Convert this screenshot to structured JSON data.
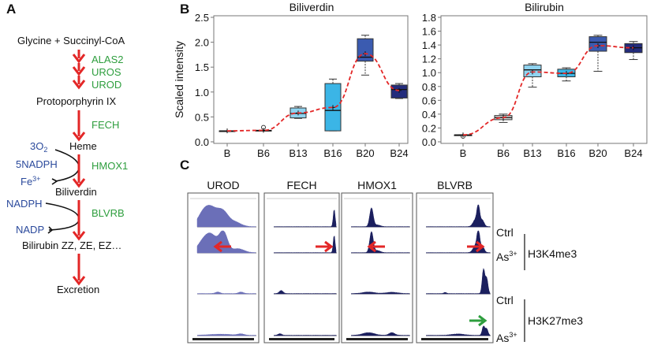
{
  "panels": {
    "a": "A",
    "b": "B",
    "c": "C"
  },
  "pathway": {
    "steps": [
      "Glycine + Succinyl-CoA",
      "Protoporphyrin IX",
      "Heme",
      "Biliverdin",
      "Bilirubin ZZ, ZE, EZ…",
      "Excretion"
    ],
    "enzymes": [
      "ALAS2",
      "UROS",
      "UROD",
      "FECH",
      "HMOX1",
      "BLVRB"
    ],
    "cofactors": {
      "o2": "3O",
      "o2_sub": "2",
      "nadph5": "5NADPH",
      "fe": "Fe",
      "fe_sup": "3+",
      "nadph": "NADPH",
      "nadp": "NADP"
    },
    "colors": {
      "arrow": "#e32727",
      "enzyme": "#2e9e3e",
      "cofactor": "#2b4a9c"
    }
  },
  "chart_data": [
    {
      "type": "box",
      "title": "Biliverdin",
      "ylabel": "Scaled intensity",
      "xlabel": "",
      "categories": [
        "B",
        "B6",
        "B13",
        "B16",
        "B20",
        "B24"
      ],
      "ylim": [
        0,
        2.5
      ],
      "yticks": [
        "0.0",
        "0.5",
        "1.0",
        "1.5",
        "2.0",
        "2.5"
      ],
      "boxes": [
        {
          "min": 0.22,
          "q1": 0.22,
          "median": 0.22,
          "q3": 0.22,
          "max": 0.22,
          "mean": 0.22,
          "outliers": []
        },
        {
          "min": 0.23,
          "q1": 0.23,
          "median": 0.23,
          "q3": 0.23,
          "max": 0.23,
          "mean": 0.23,
          "outliers": [
            0.29
          ]
        },
        {
          "min": 0.47,
          "q1": 0.48,
          "median": 0.57,
          "q3": 0.68,
          "max": 0.71,
          "mean": 0.58,
          "outliers": []
        },
        {
          "min": 0.22,
          "q1": 0.22,
          "median": 0.63,
          "q3": 1.17,
          "max": 1.26,
          "mean": 0.69,
          "outliers": []
        },
        {
          "min": 1.34,
          "q1": 1.62,
          "median": 1.7,
          "q3": 2.07,
          "max": 2.14,
          "mean": 1.77,
          "outliers": []
        },
        {
          "min": 0.87,
          "q1": 0.88,
          "median": 1.05,
          "q3": 1.14,
          "max": 1.17,
          "mean": 1.03,
          "outliers": []
        }
      ],
      "box_colors": [
        "#f2f2f2",
        "#d9d9d9",
        "#8fd3f0",
        "#3bb5e6",
        "#3b5bb0",
        "#232c7c"
      ],
      "trend_color": "#e32727",
      "grid": false
    },
    {
      "type": "box",
      "title": "Bilirubin",
      "ylabel": "",
      "xlabel": "",
      "categories": [
        "B",
        "B6",
        "B13",
        "B16",
        "B20",
        "B24"
      ],
      "ylim": [
        0,
        1.8
      ],
      "yticks": [
        "0.0",
        "0.2",
        "0.4",
        "0.6",
        "0.8",
        "1.0",
        "1.2",
        "1.4",
        "1.6",
        "1.8"
      ],
      "boxes": [
        {
          "min": 0.1,
          "q1": 0.1,
          "median": 0.1,
          "q3": 0.1,
          "max": 0.1,
          "mean": 0.1,
          "outliers": [
            0.08
          ]
        },
        {
          "min": 0.28,
          "q1": 0.32,
          "median": 0.35,
          "q3": 0.38,
          "max": 0.4,
          "mean": 0.35,
          "outliers": []
        },
        {
          "min": 0.79,
          "q1": 0.94,
          "median": 1.04,
          "q3": 1.11,
          "max": 1.13,
          "mean": 1.01,
          "outliers": []
        },
        {
          "min": 0.88,
          "q1": 0.94,
          "median": 0.99,
          "q3": 1.05,
          "max": 1.07,
          "mean": 0.99,
          "outliers": []
        },
        {
          "min": 1.02,
          "q1": 1.31,
          "median": 1.44,
          "q3": 1.52,
          "max": 1.54,
          "mean": 1.39,
          "outliers": []
        },
        {
          "min": 1.19,
          "q1": 1.29,
          "median": 1.36,
          "q3": 1.42,
          "max": 1.45,
          "mean": 1.36,
          "outliers": []
        }
      ],
      "box_colors": [
        "#f2f2f2",
        "#d9d9d9",
        "#8fd3f0",
        "#3bb5e6",
        "#3b5bb0",
        "#232c7c"
      ],
      "trend_color": "#e32727",
      "grid": false
    }
  ],
  "tracks": {
    "genes": [
      "UROD",
      "FECH",
      "HMOX1",
      "BLVRB"
    ],
    "rows": [
      "Ctrl",
      "As",
      "Ctrl",
      "As"
    ],
    "row_sup": [
      "",
      "3+",
      "",
      "3+"
    ],
    "marks": [
      "H3K4me3",
      "H3K27me3"
    ],
    "colors": {
      "signal_urod": "#6b6fb8",
      "signal": "#1b1f5e",
      "change_up": "#e32727",
      "change_mark": "#2e9e3e"
    }
  }
}
